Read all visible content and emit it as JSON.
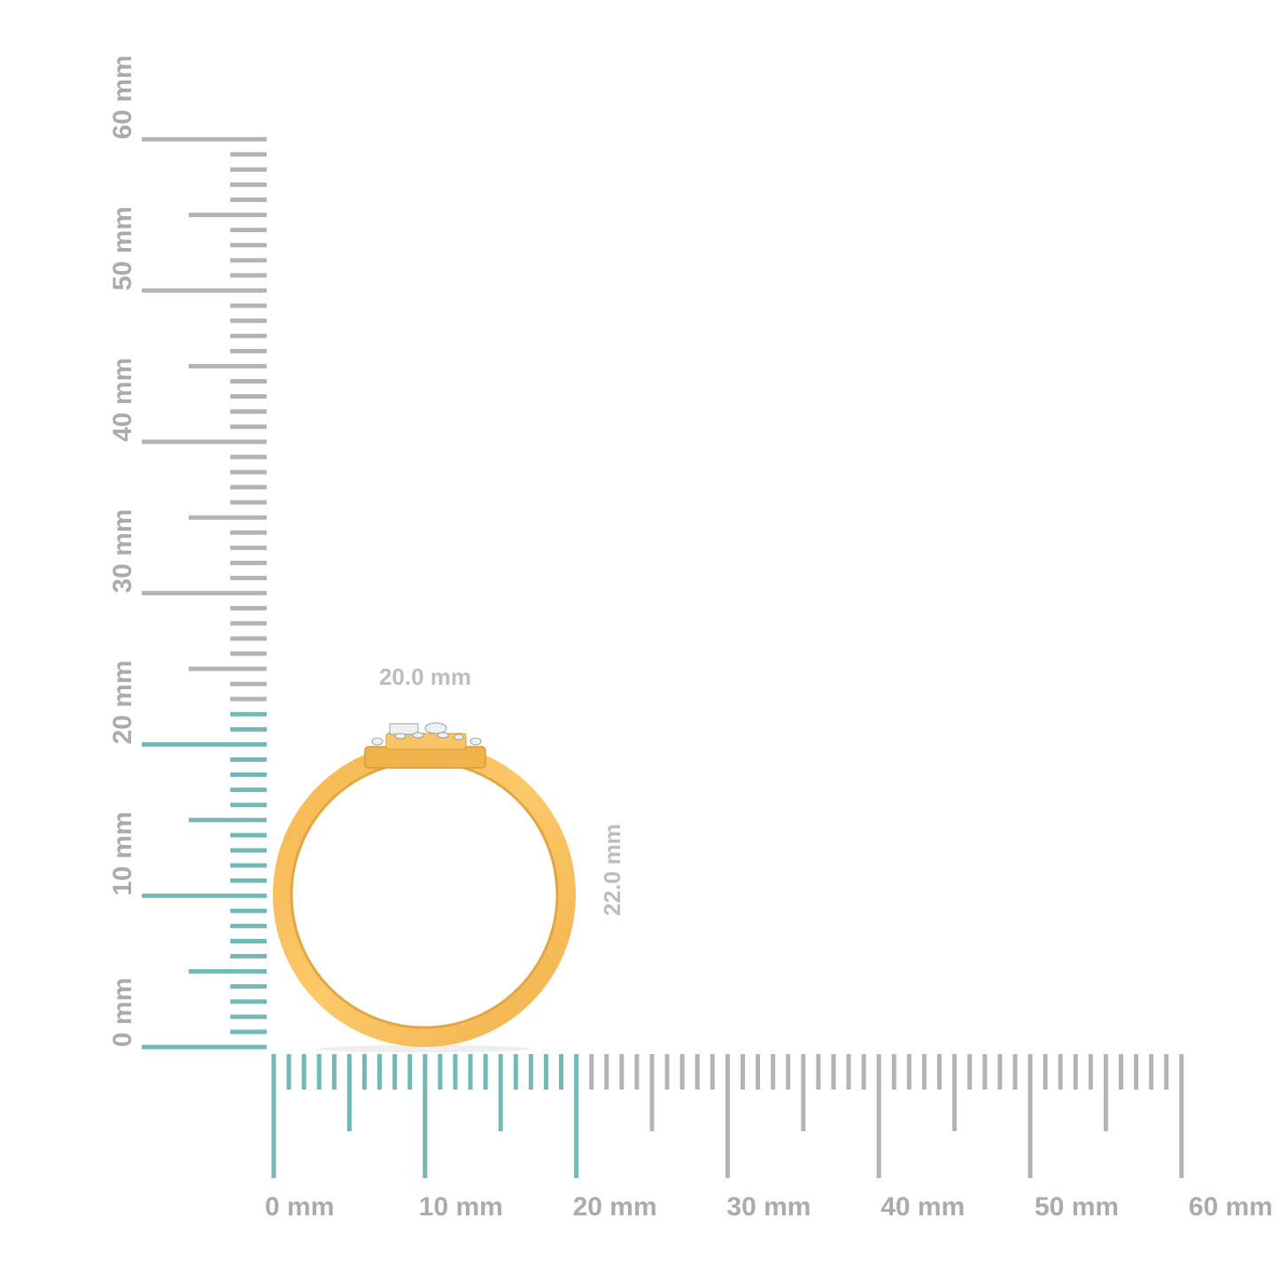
{
  "colors": {
    "highlight_tick": "#72b8b4",
    "tick": "#b3b3b3",
    "label": "#ababab",
    "gold": "#f6bf5e",
    "gold_dark": "#e0a23a"
  },
  "horizontal_ruler": {
    "unit": "mm",
    "range_mm": [
      0,
      60
    ],
    "highlighted_to_mm": 20,
    "labels": [
      "0 mm",
      "10 mm",
      "20 mm",
      "30 mm",
      "40 mm",
      "50 mm",
      "60 mm"
    ]
  },
  "vertical_ruler": {
    "unit": "mm",
    "range_mm": [
      0,
      60
    ],
    "highlighted_to_mm": 22,
    "labels": [
      "0 mm",
      "10 mm",
      "20 mm",
      "30 mm",
      "40 mm",
      "50 mm",
      "60 mm"
    ]
  },
  "product": {
    "width_label": "20.0 mm",
    "height_label": "22.0 mm"
  }
}
